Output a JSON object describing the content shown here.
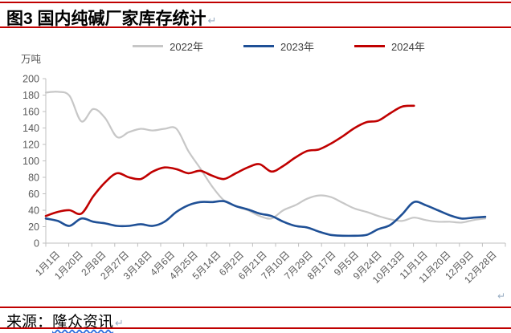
{
  "title": {
    "text": "图3 国内纯碱厂家库存统计",
    "return_mark": "↵"
  },
  "unit_label": "万吨",
  "legend": [
    {
      "label": "2022年",
      "color": "#c7c7c7"
    },
    {
      "label": "2023年",
      "color": "#1f5096"
    },
    {
      "label": "2024年",
      "color": "#c00000"
    }
  ],
  "source": {
    "prefix": "来源：",
    "name": "隆众资讯",
    "return_mark": "↵"
  },
  "chart_end_mark": "↵",
  "accent_rule_color": "#c00000",
  "chart_data": {
    "type": "line",
    "title": "图3 国内纯碱厂家库存统计",
    "ylabel": "万吨",
    "ylim": [
      0,
      200
    ],
    "y_tick_step": 20,
    "y_tick_labels": [
      "0",
      "20",
      "40",
      "60",
      "80",
      "100",
      "120",
      "140",
      "160",
      "180",
      "200"
    ],
    "x_tick_labels": [
      "1月1日",
      "1月20日",
      "2月8日",
      "2月27日",
      "3月18日",
      "4月6日",
      "4月25日",
      "5月14日",
      "6月2日",
      "6月21日",
      "7月10日",
      "7月29日",
      "8月17日",
      "9月5日",
      "9月24日",
      "10月13日",
      "11月1日",
      "11月20日",
      "12月9日",
      "12月28日"
    ],
    "points_per_label_interval": 2,
    "grid": false,
    "legend_position": "top",
    "axis_color": "#bfbfbf",
    "tick_label_color": "#595959",
    "series": [
      {
        "name": "2022年",
        "color": "#c7c7c7",
        "values": [
          183,
          184,
          179,
          148,
          163,
          152,
          129,
          135,
          139,
          137,
          139,
          139,
          112,
          91,
          69,
          52,
          45,
          40,
          33,
          30,
          40,
          46,
          54,
          58,
          56,
          49,
          42,
          38,
          33,
          29,
          27,
          31,
          28,
          26,
          26,
          25,
          28,
          30
        ]
      },
      {
        "name": "2023年",
        "color": "#1f5096",
        "values": [
          30,
          27,
          21,
          30,
          26,
          24,
          21,
          21,
          23,
          21,
          26,
          38,
          46,
          50,
          50,
          51,
          45,
          41,
          36,
          33,
          26,
          21,
          19,
          14,
          10,
          9,
          9,
          10,
          17,
          22,
          35,
          50,
          46,
          40,
          34,
          30,
          31,
          32
        ]
      },
      {
        "name": "2024年",
        "color": "#c00000",
        "values": [
          33,
          38,
          40,
          36,
          57,
          74,
          85,
          80,
          78,
          87,
          92,
          90,
          85,
          88,
          82,
          78,
          85,
          92,
          96,
          87,
          94,
          104,
          112,
          114,
          121,
          130,
          140,
          147,
          149,
          158,
          166,
          167
        ]
      }
    ]
  }
}
